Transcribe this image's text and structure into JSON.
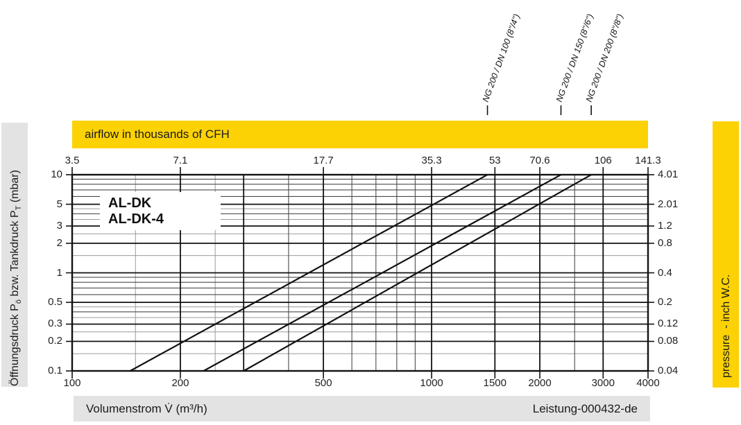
{
  "colors": {
    "banner_yellow": "#FCD205",
    "banner_gray": "#E3E3E3",
    "grid_major": "#111111",
    "grid_mid": "#4a4a4a",
    "grid_light": "#9a9a9a",
    "series_line": "#111111",
    "tick_color": "#111111"
  },
  "banners": {
    "top_title": "airflow in thousands of CFH",
    "right_title": "pressure  - inch W.C.",
    "bottom_left": "Volumenstrom V̇ (m³/h)",
    "bottom_right": "Leistung-000432-de",
    "left_axis_label_parts": {
      "p1": "Öffnungsdruck P",
      "sub1": "ö",
      "p2": " bzw. Tankdruck P",
      "sub2": "T",
      "p3": " (mbar)"
    }
  },
  "legend": {
    "items": [
      "AL-DK",
      "AL-DK-4"
    ]
  },
  "chart_data": {
    "type": "line",
    "title": "airflow in thousands of CFH",
    "xlabel": "Volumenstrom V̇ (m³/h)",
    "ylabel_left": "Öffnungsdruck Pö bzw. Tankdruck PT (mbar)",
    "ylabel_right": "pressure - inch W.C.",
    "document_id": "Leistung-000432-de",
    "x_scale": "log",
    "x_min": 100,
    "x_max": 4000,
    "y_scale": "log",
    "y_min": 0.1,
    "y_max": 10,
    "bottom_ticks": [
      {
        "label": "100",
        "at": 100
      },
      {
        "label": "200",
        "at": 200
      },
      {
        "label": "500",
        "at": 500
      },
      {
        "label": "1000",
        "at": 1000
      },
      {
        "label": "1500",
        "at": 1500
      },
      {
        "label": "2000",
        "at": 2000
      },
      {
        "label": "3000",
        "at": 3000
      },
      {
        "label": "4000",
        "at": 4000
      }
    ],
    "top_ticks": [
      {
        "label": "3.5",
        "at": 100
      },
      {
        "label": "7.1",
        "at": 200
      },
      {
        "label": "17.7",
        "at": 500
      },
      {
        "label": "35.3",
        "at": 1000
      },
      {
        "label": "53",
        "at": 1500
      },
      {
        "label": "70.6",
        "at": 2000
      },
      {
        "label": "106",
        "at": 3000
      },
      {
        "label": "141.3",
        "at": 4000
      }
    ],
    "left_ticks": [
      {
        "label": "10",
        "at": 10
      },
      {
        "label": "5",
        "at": 5
      },
      {
        "label": "3",
        "at": 3
      },
      {
        "label": "2",
        "at": 2
      },
      {
        "label": "1",
        "at": 1
      },
      {
        "label": "0.5",
        "at": 0.5
      },
      {
        "label": "0.3",
        "at": 0.3
      },
      {
        "label": "0.2",
        "at": 0.2
      },
      {
        "label": "0.1",
        "at": 0.1
      }
    ],
    "right_ticks": [
      {
        "label": "4.01",
        "at": 10
      },
      {
        "label": "2.01",
        "at": 5
      },
      {
        "label": "1.2",
        "at": 3
      },
      {
        "label": "0.8",
        "at": 2
      },
      {
        "label": "0.4",
        "at": 1
      },
      {
        "label": "0.2",
        "at": 0.5
      },
      {
        "label": "0.12",
        "at": 0.3
      },
      {
        "label": "0.08",
        "at": 0.2
      },
      {
        "label": "0.04",
        "at": 0.1
      }
    ],
    "grid": {
      "x_major": [
        100,
        200,
        300,
        500,
        1000,
        1500,
        2000,
        3000,
        4000
      ],
      "x_mid": [
        400,
        600,
        700,
        800,
        900,
        2500
      ],
      "x_light": [
        150,
        250
      ],
      "y_major": [
        0.1,
        0.2,
        0.3,
        0.5,
        1,
        2,
        3,
        5,
        10
      ],
      "y_mid": [
        0.4,
        0.6,
        0.7,
        0.8,
        0.9,
        4,
        6,
        7,
        8,
        9
      ],
      "y_light": [
        0.15,
        0.25,
        0.35,
        0.45,
        1.5,
        2.5,
        3.5,
        4.5
      ]
    },
    "series": [
      {
        "name": "NG 200 / DN 100 (8\"/4\")",
        "points": [
          [
            145,
            0.1
          ],
          [
            1430,
            10
          ]
        ]
      },
      {
        "name": "NG 200 / DN 150 (8\"/6\")",
        "points": [
          [
            232,
            0.1
          ],
          [
            2290,
            10
          ]
        ]
      },
      {
        "name": "NG 200 / DN 200 (8\"/8\")",
        "points": [
          [
            300,
            0.1
          ],
          [
            2780,
            10
          ]
        ]
      }
    ],
    "legend": [
      "AL-DK",
      "AL-DK-4"
    ]
  }
}
